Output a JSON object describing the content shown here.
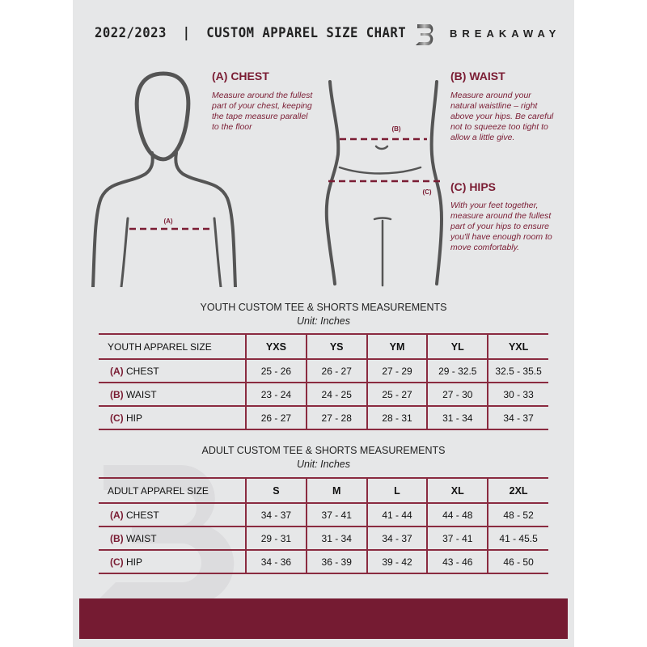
{
  "header": {
    "title": "2022/2023  |  CUSTOM APPAREL SIZE CHART",
    "brand": "BREAKAWAY",
    "logo_letter": "B"
  },
  "measurements": [
    {
      "label": "(A) CHEST",
      "description": "Measure around the fullest part of your chest, keeping the tape measure parallel to the floor",
      "marker": "(A)"
    },
    {
      "label": "(B) WAIST",
      "description": "Measure around your natural waistline – right above your hips. Be careful not to squeeze too tight to allow a little give.",
      "marker": "(B)"
    },
    {
      "label": "(C) HIPS",
      "description": "With your feet together, measure around the fullest part of your hips to ensure you'll have enough room to move comfortably.",
      "marker": "(C)"
    }
  ],
  "youth": {
    "title": "YOUTH CUSTOM TEE & SHORTS MEASUREMENTS",
    "unit": "Unit: Inches",
    "size_header": "YOUTH APPAREL SIZE",
    "sizes": [
      "YXS",
      "YS",
      "YM",
      "YL",
      "YXL"
    ],
    "rows": [
      {
        "letter": "(A)",
        "name": "CHEST",
        "values": [
          "25 - 26",
          "26 - 27",
          "27 - 29",
          "29 - 32.5",
          "32.5 - 35.5"
        ]
      },
      {
        "letter": "(B)",
        "name": "WAIST",
        "values": [
          "23 - 24",
          "24 - 25",
          "25 - 27",
          "27 - 30",
          "30 - 33"
        ]
      },
      {
        "letter": "(C)",
        "name": "HIP",
        "values": [
          "26 - 27",
          "27 - 28",
          "28 - 31",
          "31 - 34",
          "34 - 37"
        ]
      }
    ]
  },
  "adult": {
    "title": "ADULT CUSTOM TEE & SHORTS MEASUREMENTS",
    "unit": "Unit: Inches",
    "size_header": "ADULT APPAREL SIZE",
    "sizes": [
      "S",
      "M",
      "L",
      "XL",
      "2XL"
    ],
    "rows": [
      {
        "letter": "(A)",
        "name": "CHEST",
        "values": [
          "34 - 37",
          "37 - 41",
          "41 - 44",
          "44 - 48",
          "48 - 52"
        ]
      },
      {
        "letter": "(B)",
        "name": "WAIST",
        "values": [
          "29 - 31",
          "31 - 34",
          "34 - 37",
          "37 - 41",
          "41 - 45.5"
        ]
      },
      {
        "letter": "(C)",
        "name": "HIP",
        "values": [
          "34 - 36",
          "36 - 39",
          "39 - 42",
          "43 - 46",
          "46 - 50"
        ]
      }
    ]
  },
  "colors": {
    "accent": "#751b32",
    "background": "#e6e7e8"
  }
}
